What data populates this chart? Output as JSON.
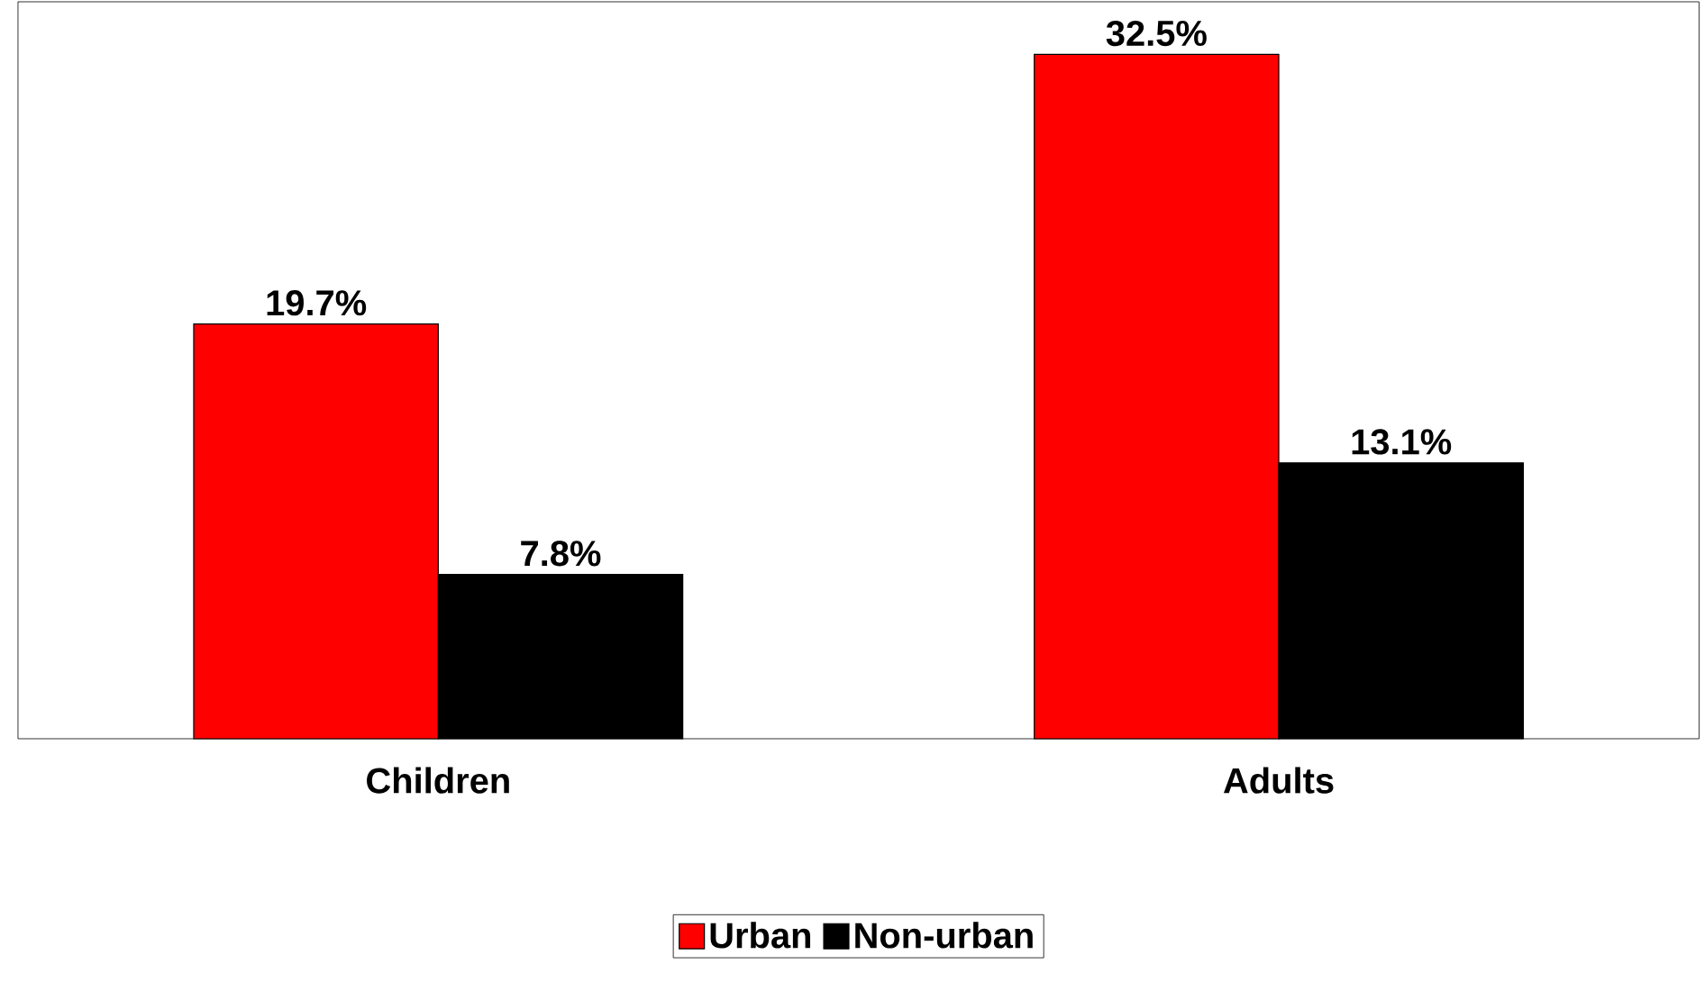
{
  "chart_data": {
    "type": "bar",
    "categories": [
      "Children",
      "Adults"
    ],
    "series": [
      {
        "name": "Urban",
        "color": "#ff0000",
        "values": [
          19.7,
          32.5
        ],
        "value_labels": [
          "19.7%",
          "32.5%"
        ]
      },
      {
        "name": "Non-urban",
        "color": "#000000",
        "values": [
          7.8,
          13.1
        ],
        "value_labels": [
          "7.8%",
          "13.1%"
        ]
      }
    ],
    "ylim": [
      0,
      35
    ],
    "tick_labels": "x",
    "legend": "bottom",
    "grid": false
  }
}
